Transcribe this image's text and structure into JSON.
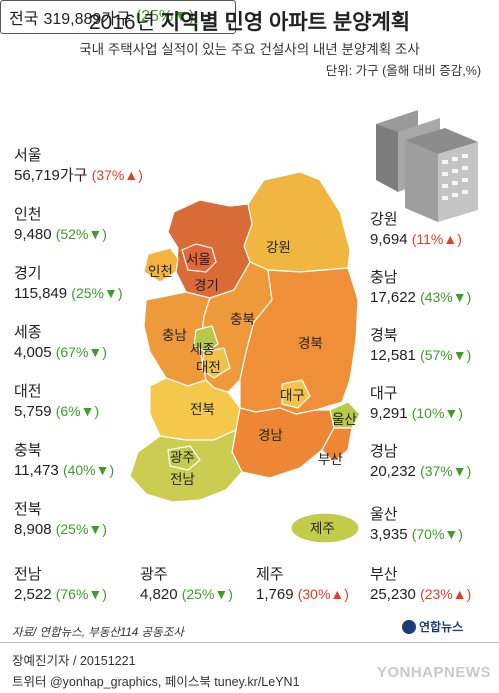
{
  "header": {
    "title_light": "2016년",
    "title_bold": "지역별 민영 아파트 분양계획",
    "subtitle": "국내 주택사업 실적이 있는 주요 건설사의 내년 분양계획 조사",
    "unit": "단위: 가구 (올해 대비 증감,%)"
  },
  "nation": {
    "label": "전국",
    "value": "319,889가구",
    "change": "(25%▼)"
  },
  "stats": {
    "seoul": {
      "name": "서울",
      "value": "56,719가구",
      "change": "(37%▲)",
      "dir": "up"
    },
    "incheon": {
      "name": "인천",
      "value": "9,480",
      "change": "(52%▼)",
      "dir": "down"
    },
    "gyeonggi": {
      "name": "경기",
      "value": "115,849",
      "change": "(25%▼)",
      "dir": "down"
    },
    "sejong": {
      "name": "세종",
      "value": "4,005",
      "change": "(67%▼)",
      "dir": "down"
    },
    "daejeon": {
      "name": "대전",
      "value": "5,759",
      "change": "(6%▼)",
      "dir": "down"
    },
    "chungbuk": {
      "name": "충북",
      "value": "11,473",
      "change": "(40%▼)",
      "dir": "down"
    },
    "jeonbuk": {
      "name": "전북",
      "value": "8,908",
      "change": "(25%▼)",
      "dir": "down"
    },
    "jeonnam": {
      "name": "전남",
      "value": "2,522",
      "change": "(76%▼)",
      "dir": "down"
    },
    "gwangju": {
      "name": "광주",
      "value": "4,820",
      "change": "(25%▼)",
      "dir": "down"
    },
    "jeju": {
      "name": "제주",
      "value": "1,769",
      "change": "(30%▲)",
      "dir": "up"
    },
    "gangwon": {
      "name": "강원",
      "value": "9,694",
      "change": "(11%▲)",
      "dir": "up"
    },
    "chungnam": {
      "name": "충남",
      "value": "17,622",
      "change": "(43%▼)",
      "dir": "down"
    },
    "gyeongbuk": {
      "name": "경북",
      "value": "12,581",
      "change": "(57%▼)",
      "dir": "down"
    },
    "daegu": {
      "name": "대구",
      "value": "9,291",
      "change": "(10%▼)",
      "dir": "down"
    },
    "gyeongnam": {
      "name": "경남",
      "value": "20,232",
      "change": "(37%▼)",
      "dir": "down"
    },
    "ulsan": {
      "name": "울산",
      "value": "3,935",
      "change": "(70%▼)",
      "dir": "down"
    },
    "busan": {
      "name": "부산",
      "value": "25,230",
      "change": "(23%▲)",
      "dir": "up"
    }
  },
  "map_labels": {
    "seoul": "서울",
    "incheon": "인천",
    "gyeonggi": "경기",
    "gangwon": "강원",
    "chungnam": "충남",
    "chungbuk": "충북",
    "sejong": "세종",
    "daejeon": "대전",
    "gyeongbuk": "경북",
    "daegu": "대구",
    "ulsan": "울산",
    "jeonbuk": "전북",
    "gwangju": "광주",
    "jeonnam": "전남",
    "gyeongnam": "경남",
    "busan": "부산",
    "jeju": "제주"
  },
  "colors": {
    "seoul_fill": "#e0683a",
    "gyeonggi_fill": "#d96b36",
    "incheon_fill": "#f4b53e",
    "gangwon_fill": "#f0b640",
    "chungnam_fill": "#ef9a3a",
    "chungbuk_fill": "#ef9a3a",
    "sejong_fill": "#b6c84a",
    "daejeon_fill": "#f1c249",
    "gyeongbuk_fill": "#ef8f38",
    "daegu_fill": "#f2c44c",
    "ulsan_fill": "#b8c94c",
    "jeonbuk_fill": "#f4c84a",
    "gwangju_fill": "#c2cb4d",
    "jeonnam_fill": "#cbcd52",
    "gyeongnam_fill": "#ed8735",
    "busan_fill": "#ed8735",
    "jeju_fill": "#c3cb4a",
    "up_color": "#e23c2c",
    "down_color": "#3f9b2a"
  },
  "icons": {
    "building": "apartment-building-icon",
    "logo": "yonhap-logo-icon"
  },
  "footer": {
    "source": "자료/ 연합뉴스, 부동산114 공동조사",
    "logo_text": "연합뉴스",
    "credit1": "장예진기자 / 20151221",
    "credit2": "트위터 @yonhap_graphics, 페이스북 tuney.kr/LeYN1",
    "watermark": "YONHAPNEWS"
  }
}
